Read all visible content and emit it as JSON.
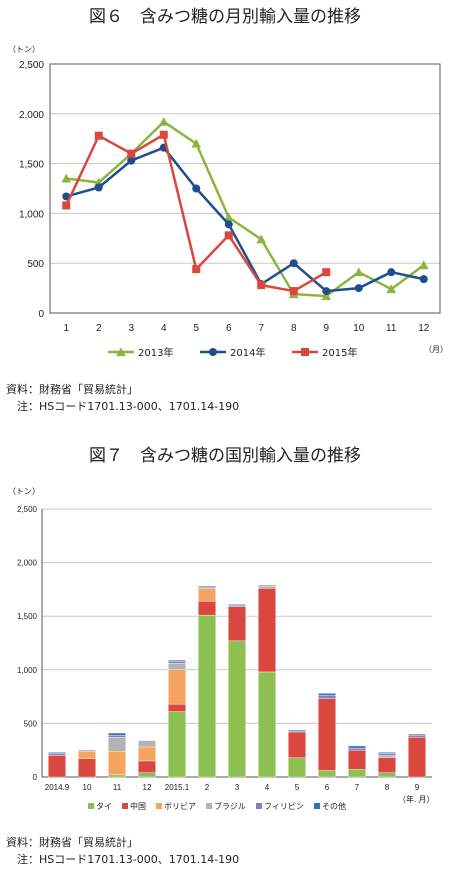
{
  "chart_data": [
    {
      "type": "line",
      "title": "図６　含みつ糖の月別輸入量の推移",
      "ylabel": "（トン）",
      "xlabel": "（月）",
      "ylim": [
        0,
        2500
      ],
      "yticks": [
        "0",
        "500",
        "1,000",
        "1,500",
        "2,000",
        "2,500"
      ],
      "categories": [
        "1",
        "2",
        "3",
        "4",
        "5",
        "6",
        "7",
        "8",
        "9",
        "10",
        "11",
        "12"
      ],
      "grid": true,
      "legend_position": "bottom",
      "series": [
        {
          "name": "2013年",
          "color": "#8ab53e",
          "marker": "triangle",
          "values": [
            1350,
            1310,
            1600,
            1920,
            1700,
            960,
            740,
            190,
            170,
            410,
            240,
            480
          ]
        },
        {
          "name": "2014年",
          "color": "#1f4e8c",
          "marker": "circle",
          "values": [
            1170,
            1260,
            1530,
            1660,
            1250,
            890,
            290,
            500,
            220,
            250,
            410,
            340
          ]
        },
        {
          "name": "2015年",
          "color": "#d9473f",
          "marker": "square",
          "values": [
            1080,
            1780,
            1600,
            1790,
            440,
            780,
            280,
            220,
            410,
            null,
            null,
            null
          ]
        }
      ],
      "notes": [
        "資料：財務省「貿易統計」",
        "　注：HSコード1701.13-000、1701.14-190"
      ]
    },
    {
      "type": "bar",
      "stacked": true,
      "title": "図７　含みつ糖の国別輸入量の推移",
      "ylabel": "（トン）",
      "xlabel": "（年. 月）",
      "ylim": [
        0,
        2500
      ],
      "yticks": [
        "0",
        "500",
        "1,000",
        "1,500",
        "2,000",
        "2,500"
      ],
      "categories": [
        "2014.9",
        "10",
        "11",
        "12",
        "2015.1",
        "2",
        "3",
        "4",
        "5",
        "6",
        "7",
        "8",
        "9"
      ],
      "grid": true,
      "legend_position": "bottom",
      "series": [
        {
          "name": "タイ",
          "color": "#8cc152",
          "values": [
            0,
            0,
            20,
            40,
            610,
            1510,
            1270,
            980,
            180,
            60,
            70,
            40,
            0
          ]
        },
        {
          "name": "中国",
          "color": "#d9473f",
          "values": [
            200,
            170,
            0,
            110,
            70,
            130,
            320,
            780,
            240,
            670,
            180,
            140,
            370
          ]
        },
        {
          "name": "ボリビア",
          "color": "#f4a460",
          "values": [
            0,
            70,
            220,
            130,
            320,
            120,
            0,
            0,
            0,
            0,
            0,
            0,
            0
          ]
        },
        {
          "name": "ブラジル",
          "color": "#b3b3b3",
          "values": [
            0,
            0,
            130,
            60,
            60,
            0,
            0,
            20,
            0,
            0,
            0,
            20,
            0
          ]
        },
        {
          "name": "フィリピン",
          "color": "#8e7cc3",
          "values": [
            20,
            10,
            20,
            0,
            20,
            10,
            10,
            10,
            10,
            30,
            20,
            20,
            20
          ]
        },
        {
          "name": "その他",
          "color": "#2e75b6",
          "values": [
            10,
            0,
            20,
            0,
            10,
            10,
            10,
            0,
            10,
            20,
            20,
            10,
            10
          ]
        }
      ],
      "notes": [
        "資料：財務省「貿易統計」",
        "　注：HSコード1701.13-000、1701.14-190"
      ]
    }
  ]
}
